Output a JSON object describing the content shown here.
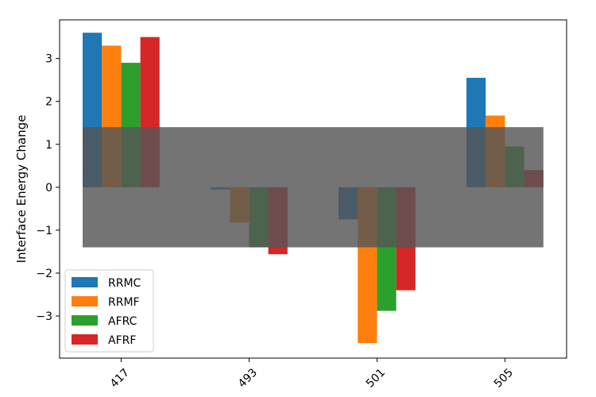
{
  "chart_data": {
    "type": "bar",
    "title": "",
    "xlabel": "",
    "ylabel": "Interface Energy Change",
    "categories": [
      "417",
      "493",
      "501",
      "505"
    ],
    "series": [
      {
        "name": "RRMC",
        "color": "#1f77b4",
        "values": [
          3.6,
          -0.05,
          -0.75,
          2.55
        ]
      },
      {
        "name": "RRMF",
        "color": "#ff7f0e",
        "values": [
          3.3,
          -0.82,
          -3.63,
          1.67
        ]
      },
      {
        "name": "AFRC",
        "color": "#2ca02c",
        "values": [
          2.9,
          -1.4,
          -2.88,
          0.95
        ]
      },
      {
        "name": "AFRF",
        "color": "#d62728",
        "values": [
          3.5,
          -1.56,
          -2.4,
          0.4
        ]
      }
    ],
    "ylim": [
      -3.98,
      3.9
    ],
    "yticks": [
      -3,
      -2,
      -1,
      0,
      1,
      2,
      3
    ],
    "ytick_labels": [
      "−3",
      "−2",
      "−1",
      "0",
      "1",
      "2",
      "3"
    ],
    "band": {
      "ymin": -1.4,
      "ymax": 1.4,
      "color": "#555555",
      "opacity": 0.82
    },
    "legend_position": "lower-left",
    "grid": false
  }
}
